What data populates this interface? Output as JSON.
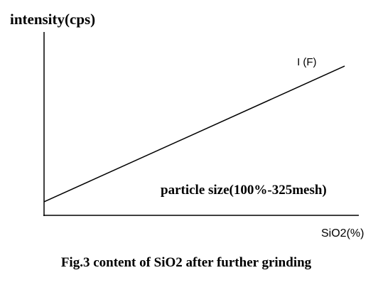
{
  "chart_data": {
    "type": "line",
    "title": "Fig.3 content of SiO2 after further grinding",
    "y_label": "intensity(cps)",
    "x_label": "SiO2(%)",
    "annotation": "particle size(100%-325mesh)",
    "x": [
      0,
      95.5
    ],
    "series": [
      {
        "name": "I (F)",
        "color": "#000000",
        "values": [
          7.4,
          81.4
        ]
      }
    ],
    "xlim": [
      0,
      100
    ],
    "ylim": [
      0,
      100
    ]
  }
}
